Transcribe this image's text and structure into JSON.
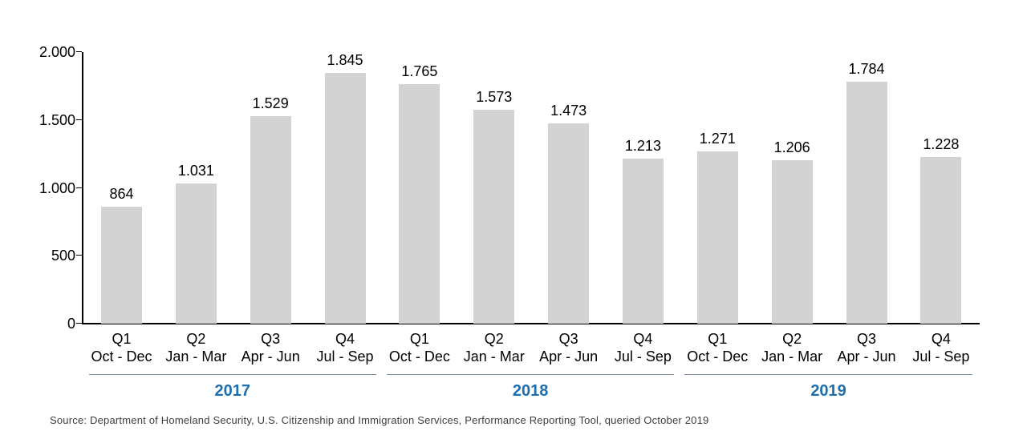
{
  "chart_data": {
    "type": "bar",
    "title": "",
    "xlabel": "",
    "ylabel": "",
    "ylim": [
      0,
      2000
    ],
    "grid": false,
    "legend_position": "none",
    "bar_color": "#d3d3d3",
    "year_label_color": "#1e6fb0",
    "y_ticks": [
      {
        "value": 2000,
        "label": "2.000"
      },
      {
        "value": 1500,
        "label": "1.500"
      },
      {
        "value": 1000,
        "label": "1.000"
      },
      {
        "value": 500,
        "label": "500"
      },
      {
        "value": 0,
        "label": "0"
      }
    ],
    "groups": [
      {
        "year": "2017",
        "bars": [
          {
            "quarter": "Q1",
            "months": "Oct - Dec",
            "value": 864,
            "label": "864"
          },
          {
            "quarter": "Q2",
            "months": "Jan - Mar",
            "value": 1031,
            "label": "1.031"
          },
          {
            "quarter": "Q3",
            "months": "Apr - Jun",
            "value": 1529,
            "label": "1.529"
          },
          {
            "quarter": "Q4",
            "months": "Jul - Sep",
            "value": 1845,
            "label": "1.845"
          }
        ]
      },
      {
        "year": "2018",
        "bars": [
          {
            "quarter": "Q1",
            "months": "Oct - Dec",
            "value": 1765,
            "label": "1.765"
          },
          {
            "quarter": "Q2",
            "months": "Jan - Mar",
            "value": 1573,
            "label": "1.573"
          },
          {
            "quarter": "Q3",
            "months": "Apr - Jun",
            "value": 1473,
            "label": "1.473"
          },
          {
            "quarter": "Q4",
            "months": "Jul - Sep",
            "value": 1213,
            "label": "1.213"
          }
        ]
      },
      {
        "year": "2019",
        "bars": [
          {
            "quarter": "Q1",
            "months": "Oct - Dec",
            "value": 1271,
            "label": "1.271"
          },
          {
            "quarter": "Q2",
            "months": "Jan - Mar",
            "value": 1206,
            "label": "1.206"
          },
          {
            "quarter": "Q3",
            "months": "Apr - Jun",
            "value": 1784,
            "label": "1.784"
          },
          {
            "quarter": "Q4",
            "months": "Jul - Sep",
            "value": 1228,
            "label": "1.228"
          }
        ]
      }
    ],
    "source": "Source: Department of Homeland Security, U.S. Citizenship and Immigration Services, Performance Reporting Tool, queried October 2019"
  }
}
